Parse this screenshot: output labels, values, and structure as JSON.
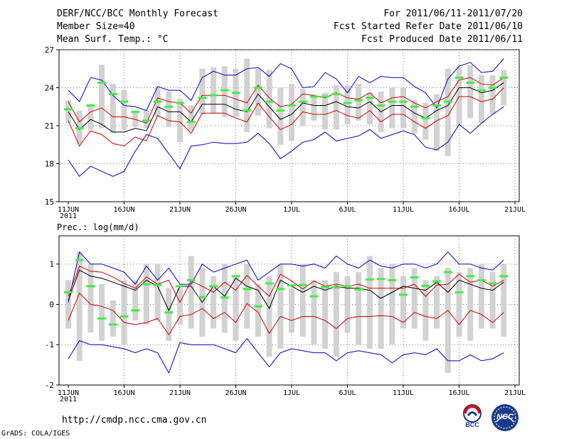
{
  "header": {
    "title": "DERF/NCC/BCC Monthly Forecast",
    "member_size": "Member Size=40",
    "variable_temp": "Mean Surf. Temp.: °C",
    "period": "For 2011/06/11-2011/07/20",
    "started": "Fcst Started Refer Date 2011/06/10",
    "produced": "Fcst Produced Date 2011/06/11"
  },
  "footer": {
    "url": "http://cmdp.ncc.cma.gov.cn",
    "grads": "GrADS: COLA/IGES",
    "logo_bcc": "BCC",
    "logo_ncc": "NCC"
  },
  "colors": {
    "box": "#d2d2d2",
    "median": "#44ee44",
    "spread": "#0000cc",
    "band": "#cc0000",
    "mean": "#000000",
    "grid": "#777777"
  },
  "chart_data": [
    {
      "type": "box-ensemble",
      "title": "",
      "ylabel": "Mean Surf. Temp.: °C",
      "ylim": [
        15,
        27
      ],
      "yticks": [
        15,
        18,
        21,
        24,
        27
      ],
      "x_tick_labels": [
        "11JUN",
        "16JUN",
        "21JUN",
        "26JUN",
        "1JUL",
        "6JUL",
        "11JUL",
        "16JUL",
        "21JUL"
      ],
      "x_year_label": "2011",
      "series": [
        {
          "name": "ensemble_max",
          "values": [
            23.8,
            22.9,
            24.8,
            24.6,
            23.4,
            22.6,
            22.5,
            22.2,
            24.1,
            23.8,
            23.8,
            23.0,
            24.8,
            25.3,
            25.0,
            25.0,
            25.5,
            25.6,
            24.9,
            25.9,
            25.5,
            24.0,
            24.1,
            25.2,
            24.7,
            23.6,
            24.9,
            24.4,
            24.9,
            24.8,
            24.8,
            24.1,
            23.6,
            22.4,
            24.7,
            25.7,
            26.0,
            25.2,
            25.3,
            26.3
          ]
        },
        {
          "name": "upper_band",
          "values": [
            22.9,
            21.3,
            22.1,
            22.4,
            21.7,
            21.7,
            21.5,
            21.2,
            23.2,
            22.9,
            22.8,
            22.0,
            23.4,
            23.4,
            23.4,
            23.1,
            22.8,
            24.2,
            23.2,
            22.5,
            22.7,
            23.5,
            23.4,
            23.2,
            23.6,
            23.2,
            23.1,
            23.6,
            22.8,
            23.2,
            23.3,
            22.8,
            22.4,
            22.9,
            23.3,
            24.6,
            24.8,
            24.3,
            24.2,
            24.8
          ]
        },
        {
          "name": "ensemble_mean",
          "values": [
            22.1,
            20.7,
            21.5,
            21.1,
            20.5,
            20.5,
            20.8,
            20.6,
            22.5,
            22.1,
            22.1,
            21.3,
            22.7,
            22.7,
            22.7,
            22.3,
            22.1,
            23.5,
            22.5,
            21.5,
            21.9,
            22.8,
            22.6,
            22.6,
            22.9,
            22.5,
            22.4,
            22.9,
            22.1,
            22.6,
            22.6,
            22.0,
            21.6,
            22.2,
            22.6,
            24.0,
            24.0,
            23.6,
            23.8,
            24.4
          ]
        },
        {
          "name": "lower_band",
          "values": [
            21.4,
            19.4,
            20.6,
            20.3,
            19.6,
            19.4,
            20.1,
            19.8,
            21.8,
            21.4,
            21.3,
            20.4,
            22.0,
            22.0,
            22.0,
            21.6,
            21.3,
            22.8,
            21.7,
            20.7,
            21.1,
            22.1,
            21.9,
            21.9,
            22.2,
            21.8,
            21.6,
            22.2,
            21.3,
            21.9,
            21.9,
            21.3,
            20.8,
            21.4,
            21.8,
            23.3,
            23.3,
            22.9,
            23.1,
            24.0
          ]
        },
        {
          "name": "ensemble_min",
          "values": [
            18.3,
            17.0,
            17.8,
            17.4,
            17.0,
            17.4,
            19.0,
            20.3,
            20.0,
            18.8,
            17.6,
            19.4,
            19.5,
            19.7,
            19.6,
            19.6,
            19.7,
            20.4,
            19.6,
            18.4,
            19.0,
            19.7,
            19.9,
            20.5,
            19.8,
            20.0,
            20.2,
            20.7,
            20.0,
            20.3,
            20.6,
            20.3,
            19.3,
            19.1,
            19.7,
            21.1,
            20.4,
            21.2,
            21.9,
            22.5
          ]
        },
        {
          "name": "box_top",
          "values": [
            23.0,
            22.2,
            22.7,
            25.8,
            24.3,
            23.8,
            22.2,
            22.2,
            24.1,
            23.7,
            23.1,
            22.6,
            25.5,
            25.6,
            25.7,
            25.5,
            26.3,
            25.5,
            25.4,
            24.0,
            24.3,
            23.9,
            23.4,
            23.6,
            24.2,
            24.2,
            24.3,
            23.6,
            23.7,
            24.0,
            24.0,
            23.0,
            22.8,
            23.5,
            25.5,
            25.6,
            25.8,
            25.0,
            25.0,
            25.4
          ]
        },
        {
          "name": "box_bottom",
          "values": [
            21.2,
            19.6,
            20.7,
            20.8,
            20.4,
            20.7,
            20.9,
            20.8,
            21.7,
            20.9,
            19.7,
            20.6,
            21.9,
            22.0,
            21.7,
            21.7,
            20.5,
            21.8,
            20.8,
            19.5,
            19.8,
            21.0,
            21.4,
            20.7,
            20.7,
            21.1,
            21.4,
            21.1,
            20.5,
            20.8,
            20.8,
            20.4,
            19.9,
            19.0,
            18.6,
            21.0,
            21.6,
            21.2,
            21.9,
            22.6
          ]
        },
        {
          "name": "ensemble_median",
          "values": [
            22.3,
            20.8,
            22.6,
            24.4,
            23.5,
            22.9,
            22.1,
            21.4,
            22.9,
            22.5,
            22.8,
            21.3,
            23.2,
            23.4,
            23.8,
            23.6,
            22.2,
            24.0,
            22.9,
            22.2,
            22.6,
            22.9,
            23.3,
            23.3,
            23.5,
            22.8,
            23.0,
            23.2,
            22.6,
            22.9,
            22.9,
            22.5,
            21.6,
            22.6,
            22.9,
            24.8,
            24.4,
            23.8,
            24.0,
            24.8
          ]
        }
      ]
    },
    {
      "type": "box-ensemble",
      "title": "",
      "ylabel": "Prec.: log(mm/d)",
      "ylim": [
        -2,
        1.7
      ],
      "yticks": [
        -2,
        -1,
        0,
        1
      ],
      "x_tick_labels": [
        "11JUN",
        "16JUN",
        "21JUN",
        "26JUN",
        "1JUL",
        "6JUL",
        "11JUL",
        "16JUL",
        "21JUL"
      ],
      "x_year_label": "2011",
      "series": [
        {
          "name": "ensemble_max",
          "values": [
            0.05,
            1.3,
            1.0,
            1.0,
            0.9,
            0.8,
            0.5,
            0.95,
            0.6,
            0.9,
            0.5,
            0.5,
            1.0,
            0.8,
            0.9,
            1.0,
            1.1,
            0.6,
            0.8,
            1.0,
            1.0,
            0.95,
            1.0,
            0.9,
            1.2,
            1.0,
            0.9,
            1.1,
            0.95,
            0.9,
            1.0,
            1.0,
            0.9,
            1.0,
            1.3,
            1.0,
            1.0,
            0.9,
            0.85,
            1.1
          ]
        },
        {
          "name": "upper_band",
          "values": [
            0.2,
            0.95,
            0.82,
            0.8,
            0.68,
            0.52,
            0.4,
            0.68,
            0.5,
            0.6,
            0.05,
            0.58,
            0.45,
            0.3,
            0.55,
            0.35,
            0.72,
            0.45,
            0.2,
            0.75,
            0.58,
            0.38,
            0.58,
            0.45,
            0.5,
            0.45,
            0.5,
            0.4,
            0.4,
            0.4,
            0.4,
            0.5,
            0.2,
            0.48,
            0.5,
            0.75,
            0.55,
            0.6,
            0.45,
            0.6
          ]
        },
        {
          "name": "ensemble_mean",
          "values": [
            0.1,
            0.85,
            0.7,
            0.65,
            0.55,
            0.45,
            0.35,
            0.6,
            0.45,
            -0.15,
            0.45,
            0.45,
            0.05,
            0.45,
            0.2,
            0.65,
            0.45,
            0.35,
            -0.1,
            0.6,
            0.45,
            0.3,
            0.45,
            0.35,
            0.45,
            0.4,
            0.4,
            0.35,
            0.15,
            0.3,
            0.45,
            0.4,
            0.35,
            0.55,
            0.3,
            0.6,
            0.5,
            0.4,
            0.35,
            0.55
          ]
        },
        {
          "name": "lower_band",
          "values": [
            -0.4,
            0.28,
            0.0,
            -0.05,
            -0.15,
            -0.45,
            -0.5,
            -0.45,
            -0.35,
            -0.75,
            -0.3,
            -0.25,
            -0.1,
            -0.35,
            -0.2,
            -0.45,
            0.02,
            -0.2,
            -0.72,
            -0.3,
            -0.4,
            -0.3,
            -0.3,
            -0.4,
            -0.6,
            -0.35,
            -0.3,
            -0.3,
            -0.28,
            -0.3,
            -0.45,
            -0.2,
            -0.3,
            -0.35,
            -0.15,
            -0.5,
            -0.15,
            -0.25,
            -0.45,
            -0.2
          ]
        },
        {
          "name": "ensemble_min",
          "values": [
            -1.35,
            -0.9,
            -1.0,
            -1.0,
            -1.05,
            -1.1,
            -1.2,
            -1.1,
            -1.2,
            -1.7,
            -0.95,
            -1.0,
            -1.0,
            -1.0,
            -1.1,
            -1.2,
            -0.85,
            -1.2,
            -1.55,
            -1.2,
            -1.1,
            -1.15,
            -1.2,
            -1.2,
            -1.4,
            -1.2,
            -1.15,
            -1.2,
            -1.25,
            -1.45,
            -1.25,
            -1.2,
            -1.25,
            -1.1,
            -1.4,
            -1.4,
            -1.25,
            -1.4,
            -1.35,
            -1.2
          ]
        },
        {
          "name": "box_top",
          "values": [
            0.6,
            1.3,
            1.0,
            0.5,
            0.1,
            0.6,
            0.6,
            1.0,
            1.0,
            0.4,
            0.4,
            1.2,
            0.9,
            0.7,
            1.0,
            0.7,
            1.0,
            0.5,
            0.7,
            1.0,
            0.4,
            1.0,
            0.6,
            0.6,
            0.8,
            0.7,
            0.8,
            1.2,
            0.9,
            1.0,
            0.7,
            0.9,
            0.6,
            0.7,
            0.9,
            0.8,
            0.9,
            1.0,
            0.8,
            1.0
          ]
        },
        {
          "name": "box_bottom",
          "values": [
            -0.6,
            -1.4,
            -0.7,
            -0.9,
            -0.8,
            -1.0,
            -0.4,
            -0.5,
            -0.4,
            -0.9,
            -0.5,
            -0.6,
            -0.8,
            -0.6,
            -0.7,
            -0.9,
            -0.6,
            -0.8,
            -1.3,
            -1.1,
            -0.7,
            -0.8,
            -1.0,
            -1.1,
            -1.3,
            -0.7,
            -1.0,
            -1.1,
            -1.1,
            -1.0,
            -0.6,
            -0.6,
            -0.9,
            -0.6,
            -1.7,
            -0.8,
            -0.9,
            -0.6,
            -0.6,
            -0.8
          ]
        },
        {
          "name": "ensemble_median",
          "values": [
            0.3,
            1.1,
            0.45,
            -0.35,
            -0.5,
            -0.3,
            -0.15,
            0.5,
            0.48,
            -0.2,
            0.45,
            0.6,
            0.18,
            0.45,
            0.17,
            0.7,
            0.38,
            -0.05,
            0.52,
            0.38,
            0.47,
            0.48,
            0.2,
            0.43,
            0.42,
            0.45,
            0.37,
            0.62,
            0.63,
            0.6,
            0.24,
            0.67,
            0.46,
            0.57,
            0.8,
            0.3,
            0.7,
            0.6,
            0.52,
            0.7
          ]
        }
      ]
    }
  ]
}
